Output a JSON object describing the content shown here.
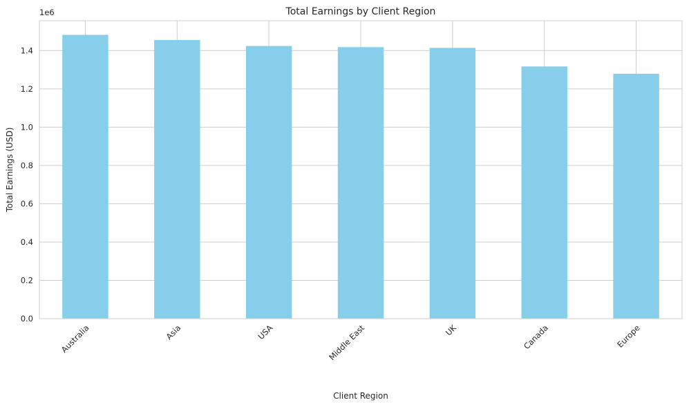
{
  "chart_data": {
    "type": "bar",
    "title": "Total Earnings by Client Region",
    "xlabel": "Client Region",
    "ylabel": "Total Earnings (USD)",
    "y_offset_label": "1e6",
    "categories": [
      "Australia",
      "Asia",
      "USA",
      "Middle East",
      "UK",
      "Canada",
      "Europe"
    ],
    "values": [
      1482000,
      1455000,
      1424000,
      1418000,
      1414000,
      1317000,
      1279000
    ],
    "ylim": [
      0,
      1556000
    ],
    "y_ticks": [
      0,
      200000,
      400000,
      600000,
      800000,
      1000000,
      1200000,
      1400000
    ],
    "y_tick_labels": [
      "0.0",
      "0.2",
      "0.4",
      "0.6",
      "0.8",
      "1.0",
      "1.2",
      "1.4"
    ],
    "grid": true,
    "bar_color": "#87CEEB",
    "grid_color": "#cccccc"
  }
}
